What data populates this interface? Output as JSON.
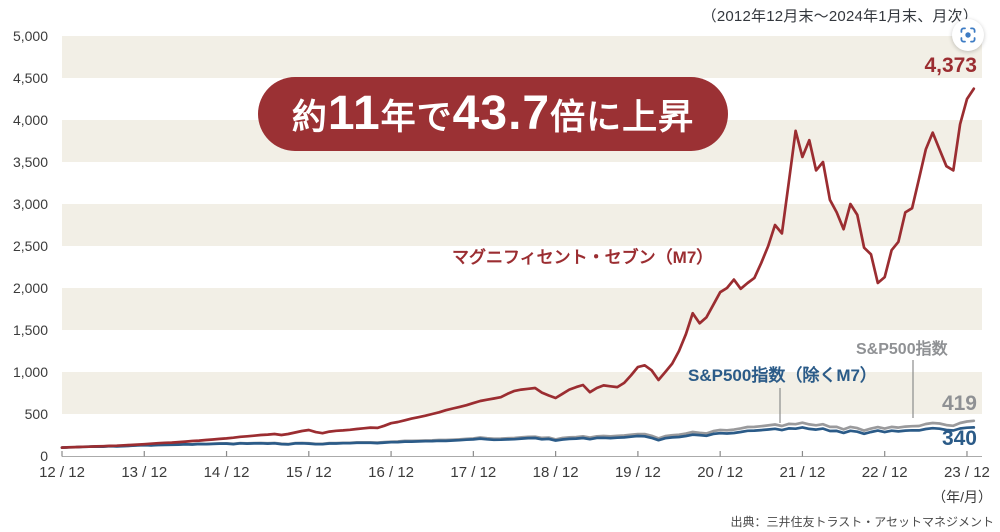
{
  "header": {
    "period_note": "（2012年12月末～2024年1月末、月次）"
  },
  "headline": {
    "text": "約11年で43.7倍に上昇",
    "parts": [
      "約",
      "11",
      "年で",
      "43.7",
      "倍に上昇"
    ]
  },
  "series_labels": {
    "m7": "マグニフィセント・セブン（M7）",
    "sp500": "S&P500指数",
    "sp500_ex_m7": "S&P500指数（除くM7）"
  },
  "end_values": {
    "m7": "4,373",
    "sp500": "419",
    "sp500_ex_m7": "340"
  },
  "axis": {
    "y_tick_labels": [
      "0",
      "500",
      "1,000",
      "1,500",
      "2,000",
      "2,500",
      "3,000",
      "3,500",
      "4,000",
      "4,500",
      "5,000"
    ],
    "x_tick_labels": [
      "12 / 12",
      "13 / 12",
      "14 / 12",
      "15 / 12",
      "16 / 12",
      "17 / 12",
      "18 / 12",
      "19 / 12",
      "20 / 12",
      "21 / 12",
      "22 / 12",
      "23 / 12"
    ],
    "x_unit": "（年/月）"
  },
  "footer": {
    "source": "出典：三井住友トラスト・アセットマネジメント"
  },
  "icons": {
    "lens": "lens-scan-icon"
  },
  "colors": {
    "m7_red": "#9B2D31",
    "pill_red": "#9B3134",
    "sp500_gray": "#9A9A9C",
    "sp500_gray_label": "#8F9194",
    "ex_m7_blue": "#2B5B88",
    "stripe_beige": "#F2EFE6",
    "axis_text": "#3B3B3B",
    "axis_line": "#ABABAB",
    "tick": "#8A8A8A",
    "pointer_line": "#8C8C8C",
    "source_text": "#4A4A4A",
    "note_text": "#33373D",
    "lens_blue": "#3E7CC4"
  },
  "chart_data": {
    "type": "line",
    "title": "約11年で43.7倍に上昇",
    "subtitle": "2012年12月末～2024年1月末、月次",
    "frequency": "monthly",
    "x_start": "2012/12",
    "x_end": "2024/01",
    "ylim": [
      0,
      5000
    ],
    "y_tick_step": 500,
    "grid": "alternating-horizontal-bands",
    "legend": "inline-labels",
    "series": [
      {
        "id": "sp500",
        "name": "S&P500指数",
        "color": "#9A9A9C",
        "end_value": 419,
        "values": [
          100,
          105,
          106,
          110,
          112,
          114,
          113,
          119,
          115,
          119,
          124,
          128,
          132,
          127,
          133,
          134,
          135,
          138,
          141,
          139,
          145,
          143,
          146,
          150,
          150,
          145,
          154,
          151,
          153,
          155,
          152,
          155,
          146,
          142,
          154,
          155,
          152,
          144,
          144,
          154,
          154,
          157,
          157,
          163,
          163,
          163,
          160,
          166,
          170,
          173,
          180,
          180,
          182,
          185,
          186,
          190,
          190,
          194,
          199,
          205,
          208,
          220,
          212,
          206,
          207,
          212,
          214,
          222,
          229,
          230,
          215,
          219,
          198,
          214,
          221,
          225,
          234,
          219,
          235,
          238,
          234,
          239,
          244,
          253,
          261,
          261,
          240,
          210,
          237,
          248,
          253,
          267,
          286,
          275,
          268,
          297,
          309,
          306,
          314,
          328,
          345,
          347,
          355,
          364,
          375,
          357,
          382,
          379,
          397,
          376,
          365,
          379,
          346,
          346,
          317,
          346,
          332,
          302,
          326,
          344,
          326,
          346,
          338,
          350,
          355,
          357,
          381,
          393,
          387,
          368,
          360,
          393,
          411,
          419
        ]
      },
      {
        "id": "sp500_ex_m7",
        "name": "S&P500指数（除くM7）",
        "color": "#2B5B88",
        "end_value": 340,
        "values": [
          100,
          104,
          105,
          109,
          111,
          113,
          112,
          117,
          114,
          117,
          122,
          126,
          130,
          126,
          131,
          132,
          133,
          136,
          139,
          137,
          143,
          141,
          144,
          147,
          148,
          142,
          151,
          148,
          150,
          151,
          148,
          151,
          142,
          138,
          150,
          151,
          148,
          140,
          140,
          149,
          149,
          152,
          152,
          157,
          157,
          157,
          154,
          160,
          164,
          166,
          172,
          172,
          174,
          176,
          177,
          181,
          180,
          184,
          188,
          194,
          198,
          207,
          199,
          193,
          194,
          198,
          200,
          207,
          213,
          214,
          199,
          203,
          184,
          197,
          203,
          207,
          214,
          200,
          215,
          217,
          213,
          218,
          222,
          230,
          238,
          235,
          216,
          188,
          212,
          222,
          226,
          238,
          253,
          249,
          241,
          263,
          272,
          268,
          274,
          286,
          300,
          302,
          308,
          315,
          324,
          308,
          328,
          325,
          340,
          323,
          314,
          326,
          298,
          299,
          275,
          300,
          289,
          264,
          286,
          302,
          285,
          301,
          293,
          302,
          306,
          305,
          322,
          331,
          325,
          310,
          303,
          327,
          337,
          340
        ]
      },
      {
        "id": "m7",
        "name": "マグニフィセント・セブン（M7）",
        "color": "#9B2D31",
        "end_value": 4373,
        "values": [
          100,
          103,
          106,
          109,
          111,
          114,
          117,
          120,
          123,
          127,
          131,
          136,
          140,
          146,
          152,
          157,
          160,
          166,
          172,
          178,
          183,
          190,
          196,
          203,
          210,
          218,
          228,
          235,
          242,
          250,
          255,
          262,
          250,
          262,
          280,
          298,
          310,
          285,
          272,
          290,
          300,
          305,
          312,
          322,
          330,
          338,
          335,
          360,
          390,
          405,
          425,
          445,
          462,
          480,
          500,
          520,
          545,
          565,
          585,
          605,
          630,
          655,
          670,
          685,
          700,
          740,
          775,
          790,
          800,
          810,
          755,
          720,
          690,
          740,
          790,
          820,
          845,
          760,
          810,
          840,
          830,
          820,
          870,
          960,
          1060,
          1080,
          1020,
          905,
          1000,
          1100,
          1250,
          1450,
          1700,
          1580,
          1650,
          1800,
          1950,
          2000,
          2100,
          1990,
          2060,
          2120,
          2300,
          2500,
          2750,
          2650,
          3250,
          3870,
          3560,
          3760,
          3400,
          3500,
          3050,
          2900,
          2700,
          3000,
          2870,
          2480,
          2400,
          2060,
          2130,
          2450,
          2550,
          2900,
          2950,
          3300,
          3650,
          3850,
          3650,
          3450,
          3400,
          3950,
          4250,
          4373
        ]
      }
    ]
  }
}
